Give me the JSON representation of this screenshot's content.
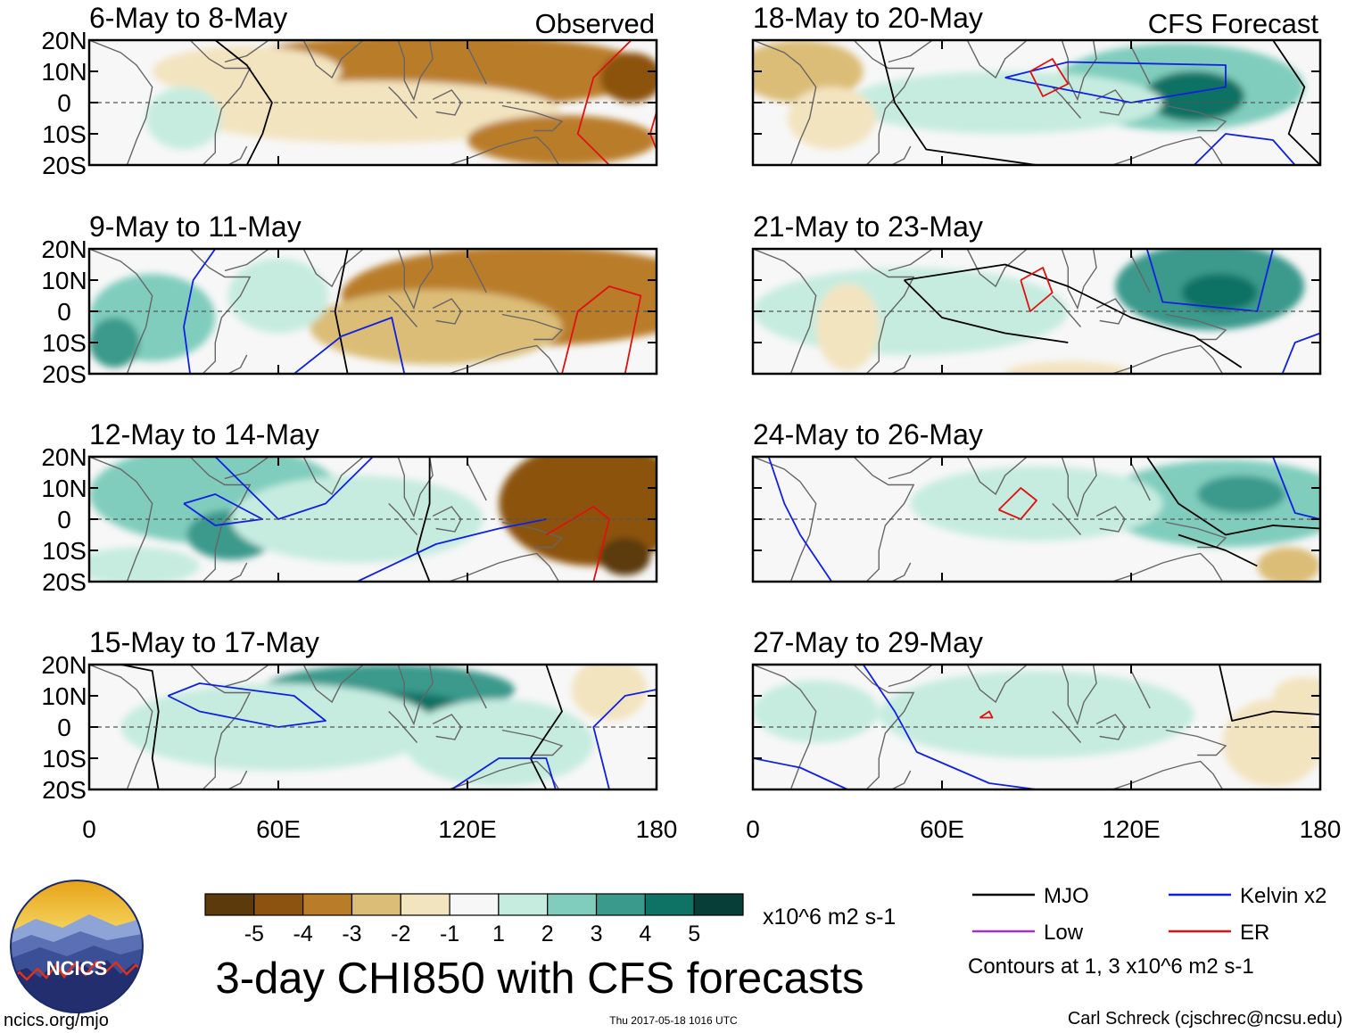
{
  "chart_data": {
    "type": "heatmap",
    "title": "3-day CHI850 with CFS forecasts",
    "variable": "CHI850",
    "units": "x10^6 m2 s-1",
    "colorbar": {
      "ticks": [
        "-5",
        "-4",
        "-3",
        "-2",
        "-1",
        "1",
        "2",
        "3",
        "4",
        "5"
      ],
      "colors": [
        "#5c3a0c",
        "#8c520f",
        "#b97d2a",
        "#dbbd77",
        "#f3e4c0",
        "#f7f7f7",
        "#c6ece0",
        "#80cdbd",
        "#3a9a8c",
        "#0e7264",
        "#073f38"
      ]
    },
    "x_axis": {
      "ticks": [
        "0",
        "60E",
        "120E",
        "180"
      ],
      "range": [
        0,
        180
      ]
    },
    "y_axis": {
      "ticks": [
        "20N",
        "10N",
        "0",
        "10S",
        "20S"
      ],
      "range": [
        -20,
        20
      ]
    },
    "columns": [
      {
        "label": "Observed",
        "panels": [
          {
            "title": "6-May to 8-May"
          },
          {
            "title": "9-May to 11-May"
          },
          {
            "title": "12-May to 14-May"
          },
          {
            "title": "15-May to 17-May"
          }
        ]
      },
      {
        "label": "CFS Forecast",
        "panels": [
          {
            "title": "18-May to 20-May"
          },
          {
            "title": "21-May to 23-May"
          },
          {
            "title": "24-May to 26-May"
          },
          {
            "title": "27-May to 29-May"
          }
        ]
      }
    ],
    "contour_legend": {
      "items": [
        {
          "name": "MJO",
          "color": "#000000"
        },
        {
          "name": "Kelvin x2",
          "color": "#1020e0"
        },
        {
          "name": "Low",
          "color": "#9b30d9"
        },
        {
          "name": "ER",
          "color": "#e01010"
        }
      ],
      "note": "Contours at 1, 3 x10^6 m2 s-1"
    }
  },
  "logo": {
    "text": "NCICS"
  },
  "footer": {
    "url": "ncics.org/mjo",
    "timestamp": "Thu 2017-05-18 1016 UTC",
    "credit": "Carl Schreck (cjschrec@ncsu.edu)"
  }
}
